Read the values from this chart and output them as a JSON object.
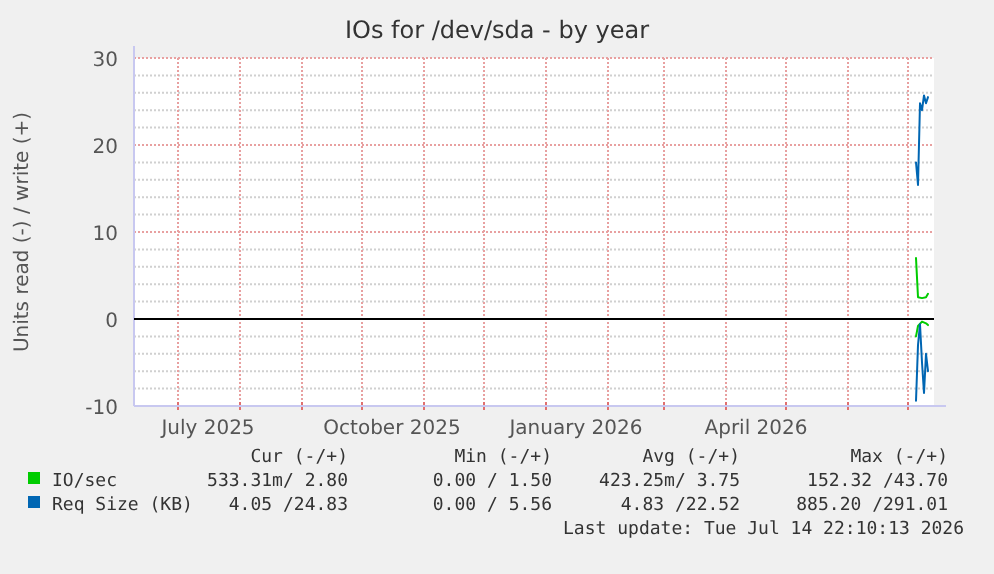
{
  "chart_data": {
    "type": "line",
    "title": "IOs for /dev/sda - by year",
    "ylabel": "Units read (-) / write (+)",
    "xlim": [
      "2025-06-09",
      "2026-07-14"
    ],
    "xticks": [
      {
        "value": "2025-07-01",
        "label": null
      },
      {
        "value": "2025-07-16",
        "label": "July 2025"
      },
      {
        "value": "2025-08-01",
        "label": null
      },
      {
        "value": "2025-09-01",
        "label": null
      },
      {
        "value": "2025-10-01",
        "label": null
      },
      {
        "value": "2025-10-16",
        "label": "October 2025"
      },
      {
        "value": "2025-11-01",
        "label": null
      },
      {
        "value": "2025-12-01",
        "label": null
      },
      {
        "value": "2026-01-01",
        "label": null
      },
      {
        "value": "2026-01-16",
        "label": "January 2026"
      },
      {
        "value": "2026-02-01",
        "label": null
      },
      {
        "value": "2026-03-01",
        "label": null
      },
      {
        "value": "2026-04-01",
        "label": null
      },
      {
        "value": "2026-04-16",
        "label": "April 2026"
      },
      {
        "value": "2026-05-01",
        "label": null
      },
      {
        "value": "2026-06-01",
        "label": null
      },
      {
        "value": "2026-07-01",
        "label": null
      }
    ],
    "ylim": [
      -10,
      30
    ],
    "yticks": [
      -10,
      {
        "value": -8,
        "label": null
      },
      {
        "value": -6,
        "label": null
      },
      {
        "value": -4,
        "label": null
      },
      {
        "value": -2,
        "label": null
      },
      0,
      {
        "value": 2,
        "label": null
      },
      {
        "value": 4,
        "label": null
      },
      {
        "value": 6,
        "label": null
      },
      {
        "value": 8,
        "label": null
      },
      10,
      {
        "value": 12,
        "label": null
      },
      {
        "value": 14,
        "label": null
      },
      {
        "value": 16,
        "label": null
      },
      {
        "value": 18,
        "label": null
      },
      20,
      {
        "value": 22,
        "label": null
      },
      {
        "value": 24,
        "label": null
      },
      {
        "value": 26,
        "label": null
      },
      {
        "value": 28,
        "label": null
      },
      30
    ],
    "grid": true,
    "legend": "bottom",
    "line_style": "solid",
    "ref_lines": [
      {
        "axis": "y",
        "value": 0,
        "color": "#000000"
      }
    ],
    "series": [
      {
        "name": "IO/sec",
        "color": "#00cc00",
        "x": [
          "2026-07-05",
          "2026-07-06",
          "2026-07-08",
          "2026-07-10",
          "2026-07-11"
        ],
        "values": [
          7.0,
          2.5,
          2.4,
          2.5,
          2.9
        ]
      },
      {
        "color": "#00cc00",
        "x": [
          "2026-07-05",
          "2026-07-06",
          "2026-07-08",
          "2026-07-10",
          "2026-07-11"
        ],
        "values": [
          -2.0,
          -0.8,
          -0.3,
          -0.5,
          -0.7
        ]
      },
      {
        "name": "Req Size (KB)",
        "color": "#0066b3",
        "x": [
          "2026-07-05",
          "2026-07-06",
          "2026-07-07",
          "2026-07-08",
          "2026-07-09",
          "2026-07-10",
          "2026-07-11"
        ],
        "values": [
          18.0,
          15.4,
          24.8,
          24.0,
          25.7,
          24.8,
          25.5
        ]
      },
      {
        "color": "#0066b3",
        "x": [
          "2026-07-05",
          "2026-07-06",
          "2026-07-07",
          "2026-07-08",
          "2026-07-09",
          "2026-07-10",
          "2026-07-11"
        ],
        "values": [
          -9.4,
          -3.0,
          -0.6,
          -5.0,
          -8.5,
          -4.0,
          -6.0
        ]
      }
    ],
    "annotations": [
      "Cur (-/+)",
      "Min (-/+)",
      "Avg (-/+)",
      "Max (-/+)",
      "533.31m/ 2.80",
      "0.00 / 1.50",
      "423.25m/ 3.75",
      "152.32 /43.70",
      "4.05 /24.83",
      "0.00 / 5.56",
      "4.83 /22.52",
      "885.20 /291.01",
      "Last update: Tue Jul 14 22:10:13 2026"
    ]
  }
}
